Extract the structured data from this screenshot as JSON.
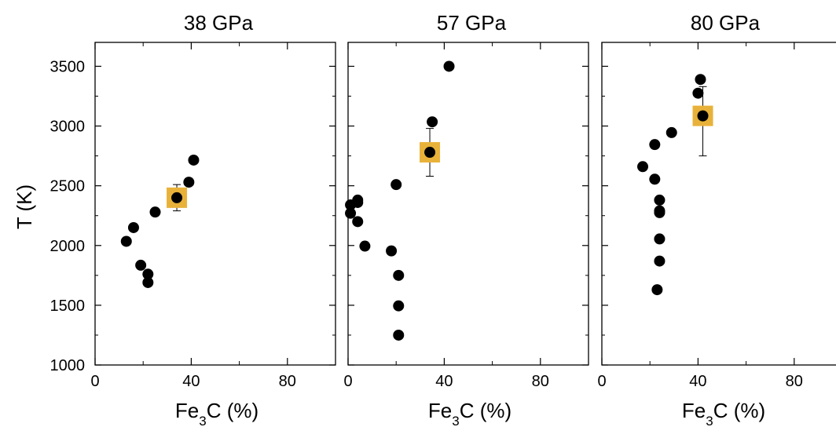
{
  "chart_data": [
    {
      "type": "scatter",
      "title": "38 GPa",
      "xlabel_main": "Fe",
      "xlabel_sub": "3",
      "xlabel_rest": "C (%)",
      "ylabel": "T (K)",
      "xlim": [
        0,
        100
      ],
      "ylim": [
        1000,
        3700
      ],
      "xticks": [
        "0",
        "40",
        "80"
      ],
      "yticks": [
        "1000",
        "1500",
        "2000",
        "2500",
        "3000",
        "3500"
      ],
      "grid": false,
      "series": [
        {
          "points": [
            {
              "x": 13,
              "y": 2035
            },
            {
              "x": 16,
              "y": 2150
            },
            {
              "x": 19,
              "y": 1835
            },
            {
              "x": 22,
              "y": 1760
            },
            {
              "x": 22,
              "y": 1690
            },
            {
              "x": 25,
              "y": 2280
            },
            {
              "x": 34,
              "y": 2400
            },
            {
              "x": 39,
              "y": 2530
            },
            {
              "x": 41,
              "y": 2715
            }
          ]
        }
      ],
      "highlight": {
        "x": 34,
        "y": 2400,
        "yerr_low": 2290,
        "yerr_high": 2510,
        "color": "#e8b23a"
      }
    },
    {
      "type": "scatter",
      "title": "57 GPa",
      "xlabel_main": "Fe",
      "xlabel_sub": "3",
      "xlabel_rest": "C (%)",
      "xlim": [
        0,
        100
      ],
      "ylim": [
        1000,
        3700
      ],
      "xticks": [
        "0",
        "40",
        "80"
      ],
      "grid": false,
      "series": [
        {
          "points": [
            {
              "x": 1,
              "y": 2340
            },
            {
              "x": 1,
              "y": 2270
            },
            {
              "x": 4,
              "y": 2380
            },
            {
              "x": 4,
              "y": 2360
            },
            {
              "x": 4,
              "y": 2200
            },
            {
              "x": 7,
              "y": 1995
            },
            {
              "x": 18,
              "y": 1955
            },
            {
              "x": 20,
              "y": 2510
            },
            {
              "x": 21,
              "y": 1750
            },
            {
              "x": 21,
              "y": 1495
            },
            {
              "x": 21,
              "y": 1250
            },
            {
              "x": 35,
              "y": 3035
            },
            {
              "x": 42,
              "y": 3500
            },
            {
              "x": 34,
              "y": 2780
            }
          ]
        }
      ],
      "highlight": {
        "x": 34,
        "y": 2780,
        "yerr_low": 2580,
        "yerr_high": 2980,
        "color": "#e8b23a"
      }
    },
    {
      "type": "scatter",
      "title": "80 GPa",
      "xlabel_main": "Fe",
      "xlabel_sub": "3",
      "xlabel_rest": "C (%)",
      "xlim": [
        0,
        100
      ],
      "ylim": [
        1000,
        3700
      ],
      "xticks": [
        "0",
        "40",
        "80"
      ],
      "grid": false,
      "series": [
        {
          "points": [
            {
              "x": 17,
              "y": 2660
            },
            {
              "x": 22,
              "y": 2845
            },
            {
              "x": 22,
              "y": 2555
            },
            {
              "x": 24,
              "y": 2380
            },
            {
              "x": 24,
              "y": 2290
            },
            {
              "x": 24,
              "y": 2275
            },
            {
              "x": 24,
              "y": 2055
            },
            {
              "x": 24,
              "y": 1870
            },
            {
              "x": 23,
              "y": 1630
            },
            {
              "x": 29,
              "y": 2945
            },
            {
              "x": 40,
              "y": 3275
            },
            {
              "x": 41,
              "y": 3390
            },
            {
              "x": 42,
              "y": 3085
            }
          ]
        }
      ],
      "highlight": {
        "x": 42,
        "y": 3085,
        "yerr_low": 2750,
        "yerr_high": 3330,
        "color": "#e8b23a"
      }
    }
  ]
}
